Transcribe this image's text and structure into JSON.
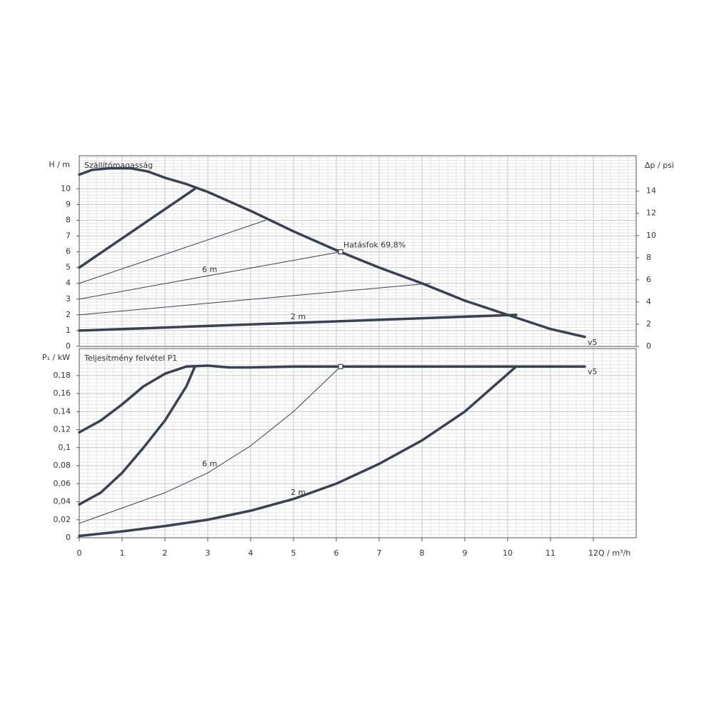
{
  "chart_data": [
    {
      "type": "line",
      "title": "Szállítómagasság",
      "ylabel": "H / m",
      "y2label": "Δp / psi",
      "xlim": [
        0,
        13
      ],
      "xticks": [
        0,
        1,
        2,
        3,
        4,
        5,
        6,
        7,
        8,
        9,
        10,
        11,
        12
      ],
      "ylim": [
        0,
        12.1
      ],
      "yticks": [
        0,
        1,
        2,
        3,
        4,
        5,
        6,
        7,
        8,
        9,
        10
      ],
      "y2lim": [
        0,
        17.2
      ],
      "y2ticks": [
        0,
        2,
        4,
        6,
        8,
        10,
        12,
        14
      ],
      "grid": true,
      "color": "#3a4150",
      "series": [
        {
          "name": "v5",
          "line_width": 3.5,
          "x": [
            0,
            0.3,
            0.7,
            1.2,
            1.6,
            2,
            2.5,
            3,
            4,
            5,
            6,
            7,
            8,
            9,
            10,
            11,
            11.8
          ],
          "values": [
            10.9,
            11.2,
            11.3,
            11.3,
            11.1,
            10.7,
            10.3,
            9.8,
            8.6,
            7.3,
            6.1,
            5.0,
            4.0,
            2.9,
            2.0,
            1.1,
            0.6
          ]
        },
        {
          "line_width": 3.5,
          "x": [
            0,
            2.7
          ],
          "values": [
            5,
            10.0
          ]
        },
        {
          "line_width": 1,
          "x": [
            0,
            4.35
          ],
          "values": [
            4,
            8.0
          ]
        },
        {
          "name": "6 m",
          "line_width": 1,
          "x": [
            0,
            6.1
          ],
          "values": [
            3,
            6.0
          ]
        },
        {
          "line_width": 1,
          "x": [
            0,
            8.2
          ],
          "values": [
            2,
            4.0
          ]
        },
        {
          "name": "2 m",
          "line_width": 3.5,
          "x": [
            0,
            10.2
          ],
          "values": [
            1,
            2.0
          ]
        }
      ],
      "annotation": {
        "text": "Hatásfok  69,8%",
        "x": 6.1,
        "y": 6.0
      }
    },
    {
      "type": "line",
      "title": "Teljesítmény felvétel P1",
      "ylabel": "P₁ / kW",
      "xlabel": "Q / m³/h",
      "xlim": [
        0,
        13
      ],
      "xticks": [
        0,
        1,
        2,
        3,
        4,
        5,
        6,
        7,
        8,
        9,
        10,
        11,
        12
      ],
      "ylim": [
        0,
        0.21
      ],
      "yticks": [
        0,
        {
          "value": 0.02,
          "label": "0,02"
        },
        {
          "value": 0.04,
          "label": "0,04"
        },
        {
          "value": 0.06,
          "label": "0,06"
        },
        {
          "value": 0.08,
          "label": "0,08"
        },
        {
          "value": 0.1,
          "label": "0,1"
        },
        {
          "value": 0.12,
          "label": "0,12"
        },
        {
          "value": 0.14,
          "label": "0,14"
        },
        {
          "value": 0.16,
          "label": "0,16"
        },
        {
          "value": 0.18,
          "label": "0,18"
        }
      ],
      "grid": true,
      "color": "#3a4150",
      "series": [
        {
          "name": "v5",
          "line_width": 3.5,
          "x": [
            0,
            0.5,
            1,
            1.5,
            2,
            2.5,
            3,
            3.5,
            4,
            5,
            6,
            7,
            8,
            9,
            10,
            11,
            11.8
          ],
          "values": [
            0.117,
            0.13,
            0.148,
            0.168,
            0.182,
            0.19,
            0.191,
            0.189,
            0.189,
            0.19,
            0.19,
            0.19,
            0.19,
            0.19,
            0.19,
            0.19,
            0.19
          ]
        },
        {
          "line_width": 3.5,
          "x": [
            0,
            0.5,
            1,
            1.5,
            2,
            2.5,
            2.7
          ],
          "values": [
            0.037,
            0.05,
            0.072,
            0.1,
            0.13,
            0.168,
            0.19
          ]
        },
        {
          "name": "6 m",
          "line_width": 1,
          "x": [
            0,
            1,
            2,
            3,
            4,
            5,
            6.1
          ],
          "values": [
            0.016,
            0.033,
            0.05,
            0.072,
            0.102,
            0.14,
            0.19
          ]
        },
        {
          "name": "2 m",
          "line_width": 3.5,
          "x": [
            0,
            1,
            2,
            3,
            4,
            5,
            6,
            7,
            8,
            9,
            10.2
          ],
          "values": [
            0.002,
            0.007,
            0.013,
            0.02,
            0.03,
            0.043,
            0.06,
            0.082,
            0.108,
            0.14,
            0.19
          ]
        }
      ],
      "marker": {
        "x": 6.1,
        "y": 0.19
      }
    }
  ]
}
